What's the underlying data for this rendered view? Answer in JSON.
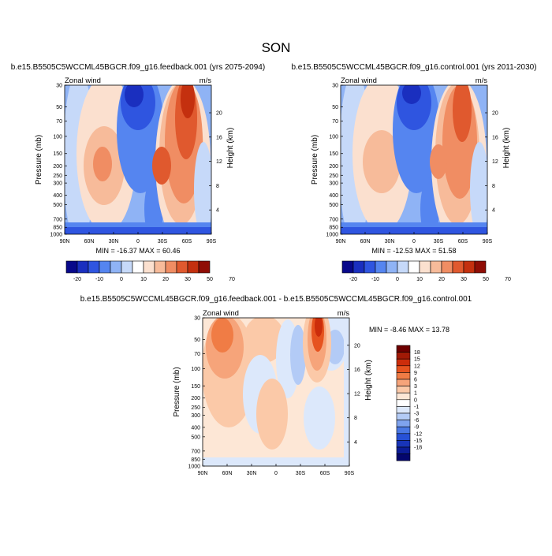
{
  "figure_title": "SON",
  "chart_data": [
    {
      "type": "heatmap",
      "panel": "feedback",
      "title": "b.e15.B5505C5WCCML45BGCR.f09_g16.feedback.001 (yrs 2075-2094)",
      "left_label": "Zonal wind",
      "units": "m/s",
      "ylabel": "Pressure (mb)",
      "ylabel_right": "Height (km)",
      "x_ticks": [
        "90N",
        "60N",
        "30N",
        "0",
        "30S",
        "60S",
        "90S"
      ],
      "y_ticks": [
        "30",
        "50",
        "70",
        "100",
        "150",
        "200",
        "250",
        "300",
        "400",
        "500",
        "700",
        "850",
        "1000"
      ],
      "height_ticks": [
        "4",
        "8",
        "12",
        "16",
        "20"
      ],
      "min": -16.37,
      "max": 60.46,
      "stats_text": "MIN = -16.37  MAX = 60.46",
      "colorbar_labels": [
        "-20",
        "-10",
        "0",
        "10",
        "20",
        "30",
        "50",
        "70"
      ]
    },
    {
      "type": "heatmap",
      "panel": "control",
      "title": "b.e15.B5505C5WCCML45BGCR.f09_g16.control.001 (yrs 2011-2030)",
      "left_label": "Zonal wind",
      "units": "m/s",
      "ylabel": "Pressure (mb)",
      "ylabel_right": "Height (km)",
      "x_ticks": [
        "90N",
        "60N",
        "30N",
        "0",
        "30S",
        "60S",
        "90S"
      ],
      "y_ticks": [
        "30",
        "50",
        "70",
        "100",
        "150",
        "200",
        "250",
        "300",
        "400",
        "500",
        "700",
        "850",
        "1000"
      ],
      "height_ticks": [
        "4",
        "8",
        "12",
        "16",
        "20"
      ],
      "min": -12.53,
      "max": 51.58,
      "stats_text": "MIN = -12.53  MAX = 51.58",
      "colorbar_labels": [
        "-20",
        "-10",
        "0",
        "10",
        "20",
        "30",
        "50",
        "70"
      ]
    },
    {
      "type": "heatmap",
      "panel": "difference",
      "title": "b.e15.B5505C5WCCML45BGCR.f09_g16.feedback.001 - b.e15.B5505C5WCCML45BGCR.f09_g16.control.001",
      "left_label": "Zonal wind",
      "units": "m/s",
      "ylabel": "Pressure (mb)",
      "ylabel_right": "Height (km)",
      "x_ticks": [
        "90N",
        "60N",
        "30N",
        "0",
        "30S",
        "60S",
        "90S"
      ],
      "y_ticks": [
        "30",
        "50",
        "70",
        "100",
        "150",
        "200",
        "250",
        "300",
        "400",
        "500",
        "700",
        "850",
        "1000"
      ],
      "height_ticks": [
        "4",
        "8",
        "12",
        "16",
        "20"
      ],
      "min": -8.46,
      "max": 13.78,
      "stats_text": "MIN = -8.46  MAX = 13.78",
      "colorbar_labels": [
        "18",
        "15",
        "12",
        "9",
        "6",
        "3",
        "1",
        "0",
        "-1",
        "-3",
        "-6",
        "-9",
        "-12",
        "-15",
        "-18"
      ]
    }
  ],
  "colors": {
    "wind_scale": [
      "#08088a",
      "#1a2fbf",
      "#2f55e0",
      "#5585f0",
      "#8fb3f5",
      "#c6d9f9",
      "#ffffff",
      "#fbe0cf",
      "#f7bb9a",
      "#f08d63",
      "#e0592e",
      "#c4300f",
      "#8f0d05"
    ],
    "diff_scale": [
      "#6e0000",
      "#a11a06",
      "#cc2d0b",
      "#e6531f",
      "#f07c45",
      "#f6a47a",
      "#fbc9a8",
      "#fde7d6",
      "#ffffff",
      "#dce8fb",
      "#b3cbf6",
      "#7fa3ee",
      "#4a78e4",
      "#2751d6",
      "#1834b8",
      "#0c1c97",
      "#04066e"
    ]
  }
}
